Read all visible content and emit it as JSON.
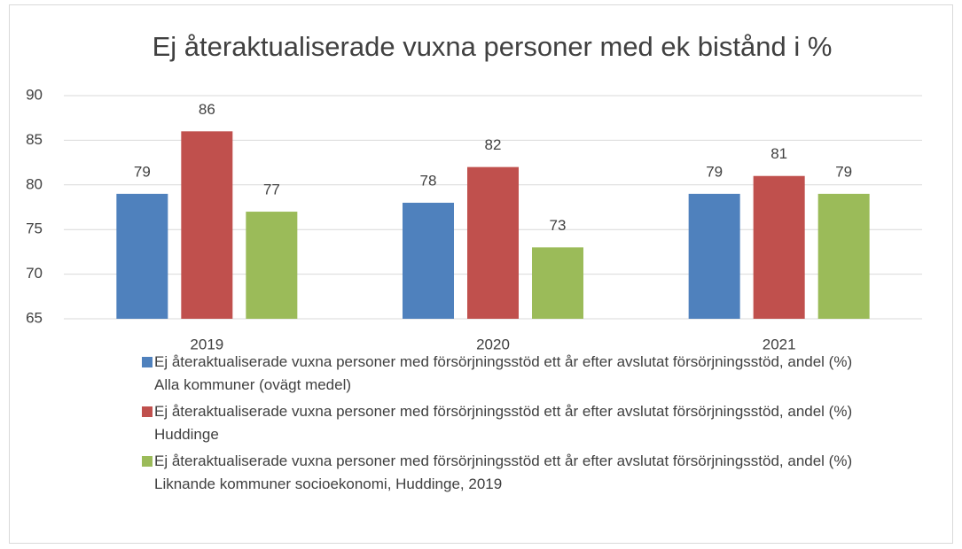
{
  "chart_data": {
    "type": "bar",
    "title": "Ej återaktualiserade vuxna personer med ek bistånd i %",
    "categories": [
      "2019",
      "2020",
      "2021"
    ],
    "series": [
      {
        "name": "Ej återaktualiserade vuxna personer med försörjningsstöd ett år efter avslutat försörjningsstöd, andel (%) Alla kommuner (ovägt medel)",
        "color": "#4f81bd",
        "values": [
          79,
          78,
          79
        ]
      },
      {
        "name": "Ej återaktualiserade vuxna personer med försörjningsstöd ett år efter avslutat försörjningsstöd, andel (%) Huddinge",
        "color": "#c0504d",
        "values": [
          86,
          82,
          81
        ]
      },
      {
        "name": "Ej återaktualiserade vuxna personer med försörjningsstöd ett år efter avslutat försörjningsstöd, andel (%) Liknande kommuner socioekonomi, Huddinge, 2019",
        "color": "#9bbb59",
        "values": [
          77,
          73,
          79
        ]
      }
    ],
    "ylim": [
      65,
      90
    ],
    "yticks": [
      65,
      70,
      75,
      80,
      85,
      90
    ],
    "grid": true,
    "legend": "bottom"
  }
}
